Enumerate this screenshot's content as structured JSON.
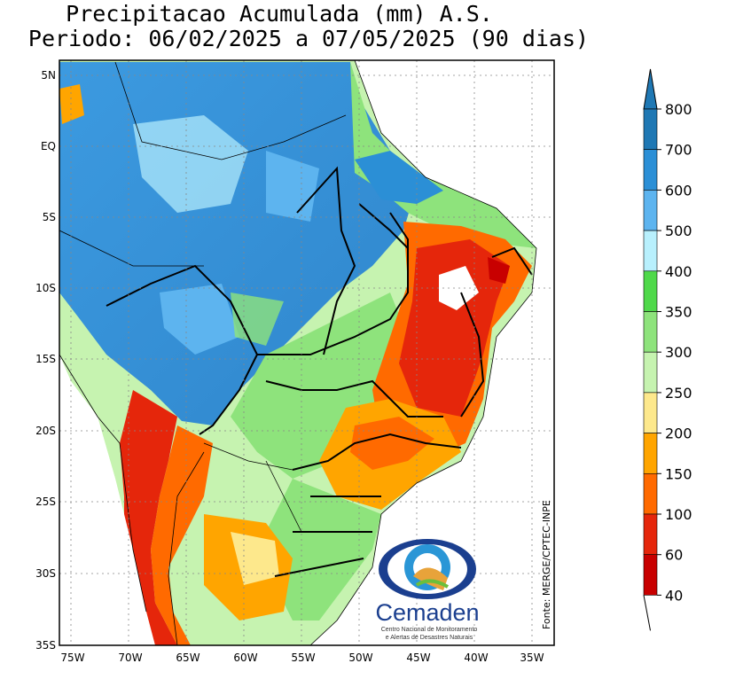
{
  "title": {
    "line1": "Precipitacao Acumulada (mm) A.S.",
    "line2": "Periodo: 06/02/2025 a 07/05/2025 (90 dias)"
  },
  "axes": {
    "lat_labels": [
      "5N",
      "EQ",
      "5S",
      "10S",
      "15S",
      "20S",
      "25S",
      "30S",
      "35S"
    ],
    "lon_labels": [
      "75W",
      "70W",
      "65W",
      "60W",
      "55W",
      "50W",
      "45W",
      "40W",
      "35W"
    ]
  },
  "source": "Fonte: MERGE/CPTEC-INPE",
  "logo": {
    "name": "Cemaden",
    "subtitle1": "Centro Nacional de Monitoramento",
    "subtitle2": "e Alertas de Desastres Naturais"
  },
  "colorbar": {
    "levels": [
      "800",
      "700",
      "600",
      "500",
      "400",
      "350",
      "300",
      "250",
      "200",
      "150",
      "100",
      "60",
      "40"
    ],
    "colors": [
      "#1f78b4",
      "#2b8fd6",
      "#5db4ef",
      "#b8f0fd",
      "#4fd94a",
      "#8ee37c",
      "#c6f3b0",
      "#fde88c",
      "#ffa500",
      "#ff6a00",
      "#e5260b",
      "#c80000",
      "#ffffff"
    ]
  }
}
